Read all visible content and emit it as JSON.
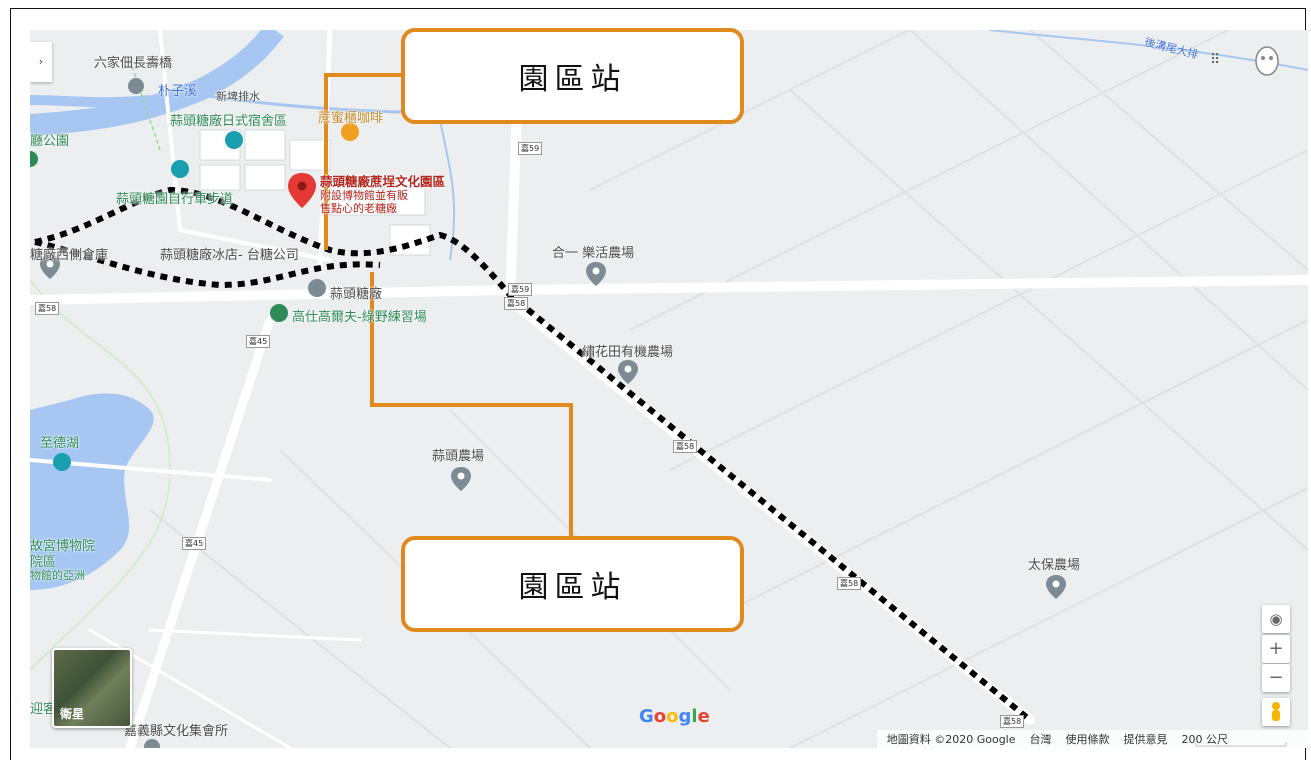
{
  "callouts": {
    "top": "園區站",
    "bottom": "園區站"
  },
  "places": {
    "liujia": "六家佃長壽橋",
    "puzixi": "朴子溪",
    "drain": "新埤排水",
    "dorm": "蒜頭糖廠日式宿舍區",
    "cafe": "蔗蜜櫃咖啡",
    "park_left": "廳公園",
    "trail": "蒜頭糖園自行車步道",
    "main_poi": "蒜頭糖廠蔗埕文化園區",
    "main_poi_sub1": "附設博物館並有販",
    "main_poi_sub2": "售點心的老糖廠",
    "icecream": "蒜頭糖廠冰店- 台糖公司",
    "west_warehouse": "糖廠西側倉庫",
    "factory": "蒜頭糖廠",
    "golf": "高仕高爾夫-綠野練習場",
    "hehe_farm": "合一 樂活農場",
    "flower_farm": "繡花田有機農場",
    "suantou_farm": "蒜頭農場",
    "taibao_farm": "太保農場",
    "zhide_lake": "至德湖",
    "palace_museum": "故宮博物院",
    "palace_museum2": "院區",
    "palace_museum3": "物館的亞洲",
    "guest": "迎客",
    "culture_hall": "嘉義縣文化集會所",
    "drain_ne": "後溝尾大排"
  },
  "roads": {
    "r59a": "嘉59",
    "r59b": "嘉59",
    "r58a": "嘉58",
    "r58b": "嘉58",
    "r58c": "嘉58",
    "r58d": "嘉58",
    "r58e": "嘉58",
    "r45a": "嘉45",
    "r45b": "嘉45"
  },
  "controls": {
    "satellite": "衛星",
    "zoom_in": "+",
    "zoom_out": "−",
    "locate": "◉",
    "collapse": "›",
    "apps": "⠿"
  },
  "footer": {
    "attribution": "地圖資料 ©2020 Google",
    "region": "台灣",
    "terms": "使用條款",
    "feedback": "提供意見",
    "scale": "200 公尺"
  },
  "colors": {
    "callout_border": "#e08a1e",
    "route_dots": "#000000",
    "river": "#a7c7f2",
    "green_label": "#2e8b57",
    "pin_red": "#e53935"
  },
  "logo": "Google"
}
